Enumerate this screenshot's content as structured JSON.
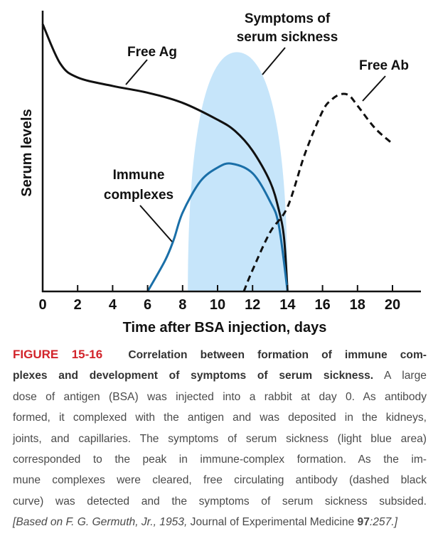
{
  "chart_data": {
    "type": "line",
    "xlabel": "Time after BSA injection, days",
    "ylabel": "Serum levels",
    "xlim": [
      0,
      21.5
    ],
    "ylim": [
      0,
      100
    ],
    "xticks": [
      0,
      2,
      4,
      6,
      8,
      10,
      12,
      14,
      16,
      18,
      20
    ],
    "y_tick_labels_shown": false,
    "grid": false,
    "legend": "none (inline annotations)",
    "series": [
      {
        "name": "Free Ag",
        "style": "solid",
        "color": "#111111",
        "x": [
          0,
          1,
          2,
          4,
          6,
          8,
          10,
          11,
          12,
          13,
          13.5,
          13.8,
          14
        ],
        "y": [
          95,
          81,
          76,
          73,
          70.6,
          67,
          61,
          57,
          50,
          39,
          29,
          19,
          0
        ]
      },
      {
        "name": "Immune complexes",
        "style": "solid",
        "color": "#1a6fa8",
        "x": [
          6,
          7,
          7.5,
          8,
          9,
          10,
          10.8,
          12,
          13,
          13.5,
          14
        ],
        "y": [
          0,
          11,
          18.5,
          28,
          39,
          44,
          45.4,
          42,
          32,
          23.5,
          0
        ]
      },
      {
        "name": "Free Ab",
        "style": "dashed",
        "color": "#111111",
        "x": [
          11.5,
          12,
          13,
          14,
          15,
          16,
          16.5,
          17,
          17.5,
          18,
          19,
          20
        ],
        "y": [
          0,
          7.6,
          21,
          30,
          49,
          64,
          68,
          70,
          69.7,
          66,
          58,
          52.5
        ]
      }
    ],
    "shaded_region": {
      "name": "Symptoms of serum sickness",
      "color": "#c6e5fa",
      "x_start": 8.3,
      "x_end": 14,
      "peak_x": 11.1,
      "peak_y": 85
    },
    "annotations": {
      "free_ag": "Free Ag",
      "symptoms_line1": "Symptoms of",
      "symptoms_line2": "serum sickness",
      "free_ab": "Free Ab",
      "immune_line1": "Immune",
      "immune_line2": "complexes"
    }
  },
  "caption": {
    "label": "FIGURE 15-16",
    "line1_bold": "Correlation between formation of immune com-",
    "line2_bold": "plexes and development of symptoms of serum sickness.",
    "line2_rest": "A large",
    "lines": [
      "dose of antigen (BSA) was injected into a rabbit at day 0. As antibody",
      "formed, it complexed with the antigen and was deposited in the kidneys,",
      "joints, and capillaries. The symptoms of serum sickness (light blue area)",
      "corresponded to the peak in immune-complex formation. As the im-",
      "mune complexes were cleared, free circulating antibody (dashed black",
      "curve) was detected and the symptoms of serum sickness subsided."
    ],
    "citation_pre": "[Based on F. G. Germuth, Jr., 1953,",
    "citation_journal": "Journal of Experimental Medicine",
    "citation_volume": "97",
    "citation_post": ":257.]"
  }
}
